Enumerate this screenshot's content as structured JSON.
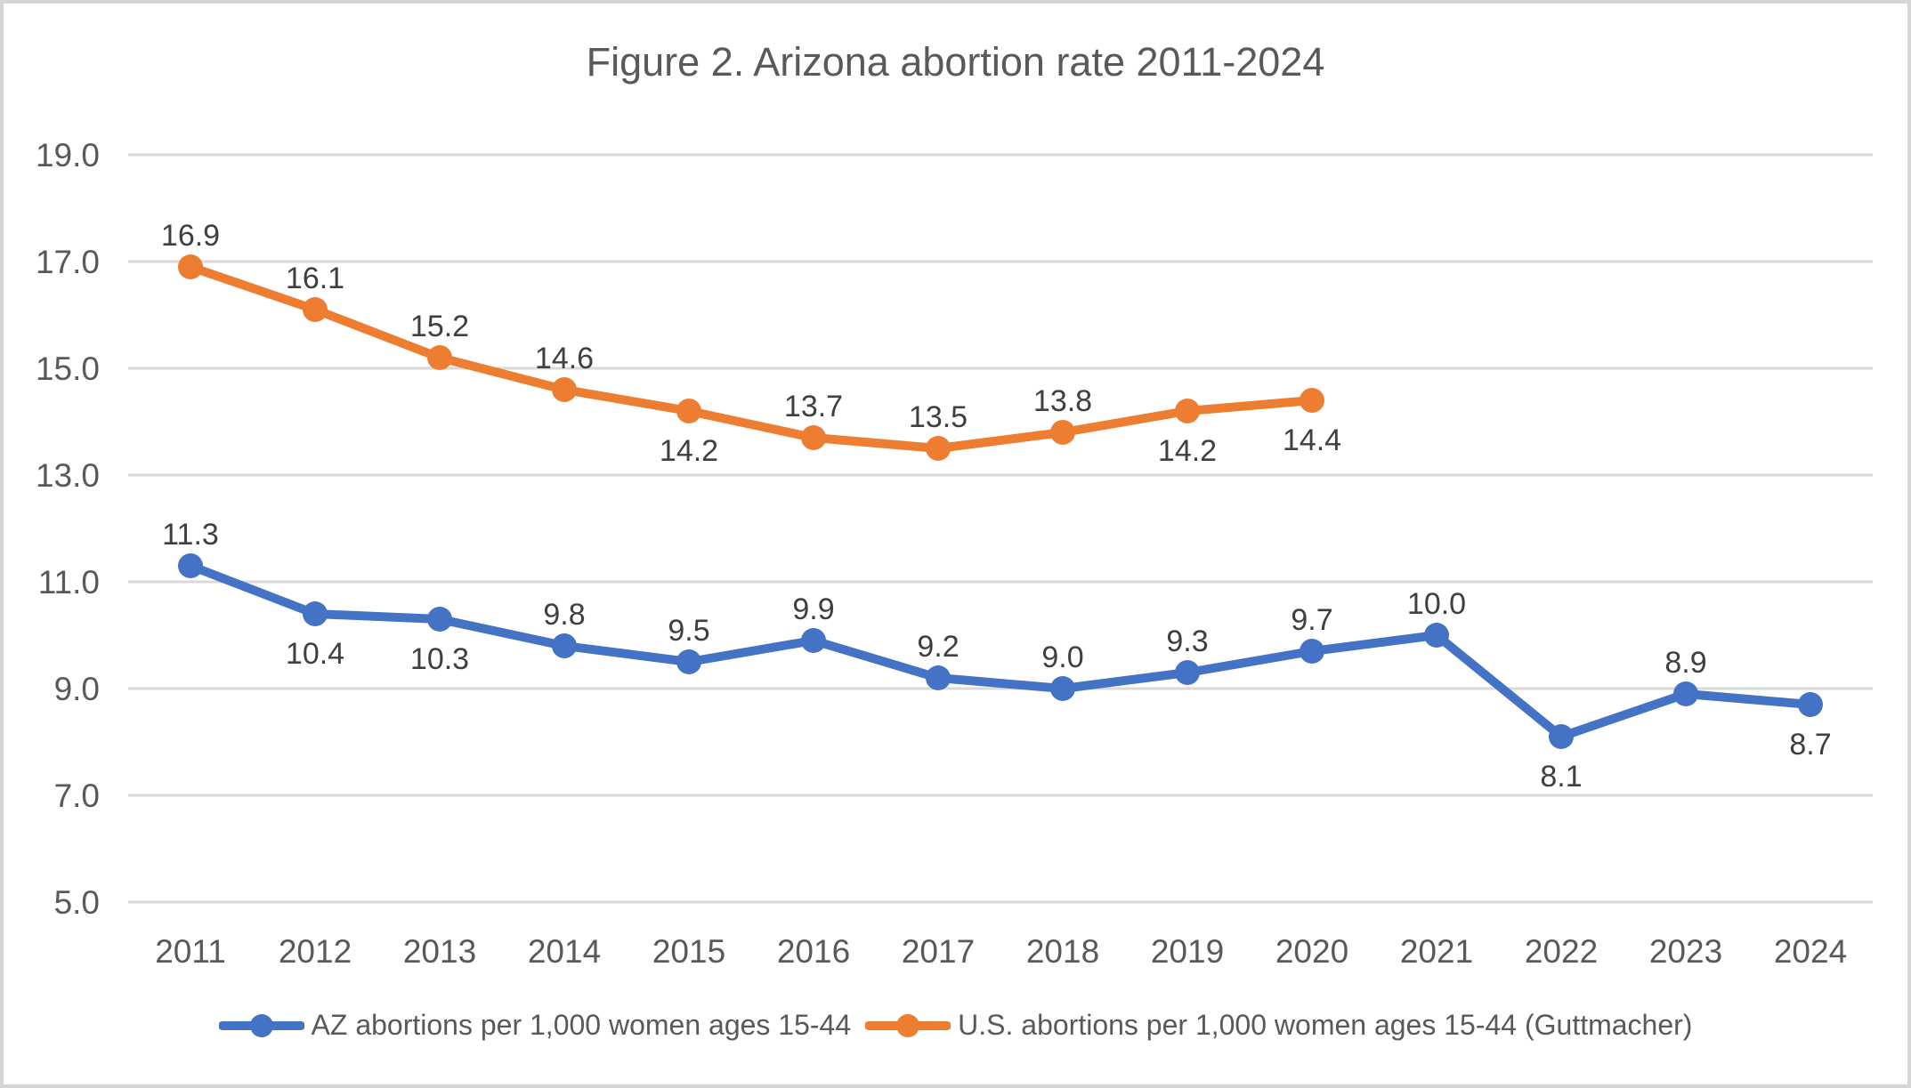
{
  "figure": {
    "title": "Figure 2. Arizona abortion rate 2011-2024"
  },
  "chart_data": {
    "type": "line",
    "title": "Figure 2. Arizona abortion rate 2011-2024",
    "categories": [
      "2011",
      "2012",
      "2013",
      "2014",
      "2015",
      "2016",
      "2017",
      "2018",
      "2019",
      "2020",
      "2021",
      "2022",
      "2023",
      "2024"
    ],
    "series": [
      {
        "name": "AZ abortions per 1,000 women ages 15-44",
        "color": "#4472C4",
        "values": [
          11.3,
          10.4,
          10.3,
          9.8,
          9.5,
          9.9,
          9.2,
          9.0,
          9.3,
          9.7,
          10.0,
          8.1,
          8.9,
          8.7
        ],
        "label_placements": [
          "above",
          "below",
          "below",
          "above",
          "above",
          "above",
          "above",
          "above",
          "above",
          "above",
          "above",
          "below",
          "above",
          "below"
        ]
      },
      {
        "name": "U.S. abortions per 1,000 women ages 15-44 (Guttmacher)",
        "color": "#ED7D31",
        "values": [
          16.9,
          16.1,
          15.2,
          14.6,
          14.2,
          13.7,
          13.5,
          13.8,
          14.2,
          14.4,
          null,
          null,
          null,
          null
        ],
        "label_placements": [
          "above",
          "above",
          "above",
          "above",
          "below",
          "above",
          "above",
          "above",
          "below",
          "below",
          null,
          null,
          null,
          null
        ]
      }
    ],
    "xlabel": "",
    "ylabel": "",
    "ylim": [
      5.0,
      19.0
    ],
    "yticks": [
      19.0,
      17.0,
      15.0,
      13.0,
      11.0,
      9.0,
      7.0,
      5.0
    ],
    "ytick_labels": [
      "19.0",
      "17.0",
      "15.0",
      "13.0",
      "11.0",
      "9.0",
      "7.0",
      "5.0"
    ],
    "grid": true,
    "legend_position": "bottom"
  },
  "colors": {
    "gridline": "#D9D9D9",
    "axis_text": "#595959",
    "data_label_text": "#3F3F3F",
    "title_text": "#595959",
    "background": "#FFFFFF",
    "frame_border": "#D5D5D5"
  }
}
